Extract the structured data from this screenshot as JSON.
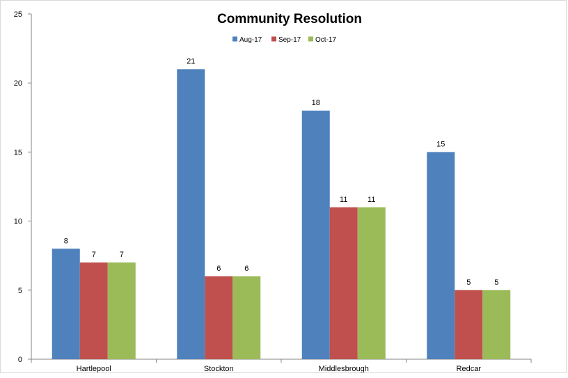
{
  "chart_data": {
    "type": "bar",
    "title": "Community Resolution",
    "xlabel": "",
    "ylabel": "",
    "categories": [
      "Hartlepool",
      "Stockton",
      "Middlesbrough",
      "Redcar"
    ],
    "series": [
      {
        "name": "Aug-17",
        "values": [
          8,
          21,
          18,
          15
        ],
        "color": "#4F81BD"
      },
      {
        "name": "Sep-17",
        "values": [
          7,
          6,
          11,
          5
        ],
        "color": "#C0504D"
      },
      {
        "name": "Oct-17",
        "values": [
          7,
          6,
          11,
          5
        ],
        "color": "#9BBB59"
      }
    ],
    "ylim": [
      0,
      25
    ],
    "yticks": [
      0,
      5,
      10,
      15,
      20,
      25
    ],
    "grid": false,
    "legend_position": "top",
    "data_labels": true
  }
}
